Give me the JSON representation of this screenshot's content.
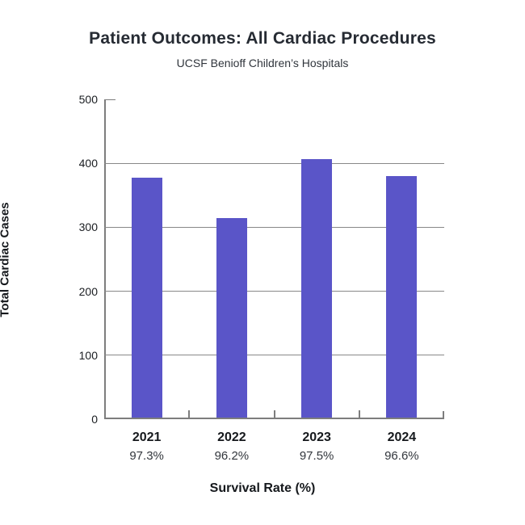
{
  "chart_data": {
    "type": "bar",
    "title": "Patient Outcomes: All Cardiac Procedures",
    "subtitle": "UCSF Benioff Children’s Hospitals",
    "xlabel": "Survival Rate (%)",
    "ylabel": "Total Cardiac Cases",
    "categories": [
      "2021",
      "2022",
      "2023",
      "2024"
    ],
    "values": [
      377,
      315,
      406,
      380
    ],
    "category_sublabels": [
      "97.3%",
      "96.2%",
      "97.5%",
      "96.6%"
    ],
    "ylim": [
      0,
      500
    ],
    "yticks": [
      0,
      100,
      200,
      300,
      400,
      500
    ],
    "gridlines_at": [
      100,
      200,
      300,
      400
    ],
    "legend": "none",
    "grid": "horizontal",
    "bar_color": "#5a55c8",
    "grid_color": "#888888",
    "axis_color": "#7d7d7d"
  }
}
